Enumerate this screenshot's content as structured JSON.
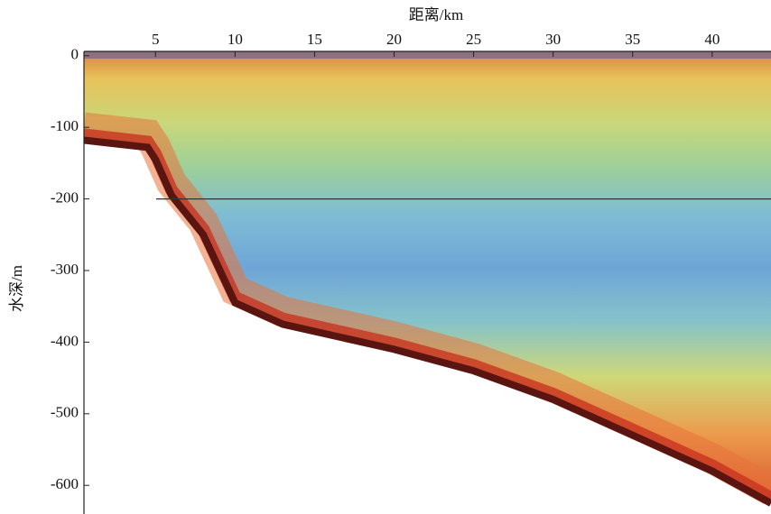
{
  "chart_data": {
    "type": "echogram",
    "x_label": "距离/km",
    "y_label": "水深/m",
    "xlim": [
      0.5,
      43.7
    ],
    "xticks": [
      5,
      10,
      15,
      20,
      25,
      30,
      35,
      40
    ],
    "ylim": [
      -640,
      6
    ],
    "yticks": [
      0,
      -100,
      -200,
      -300,
      -400,
      -500,
      -600
    ],
    "reference_line": -200,
    "seabed": {
      "x": [
        0.5,
        4.5,
        5,
        6,
        8,
        10,
        13,
        20,
        25,
        30,
        35,
        40,
        43.7
      ],
      "values": [
        -118,
        -128,
        -145,
        -195,
        -250,
        -345,
        -375,
        -410,
        -440,
        -480,
        -530,
        -580,
        -625
      ]
    }
  }
}
